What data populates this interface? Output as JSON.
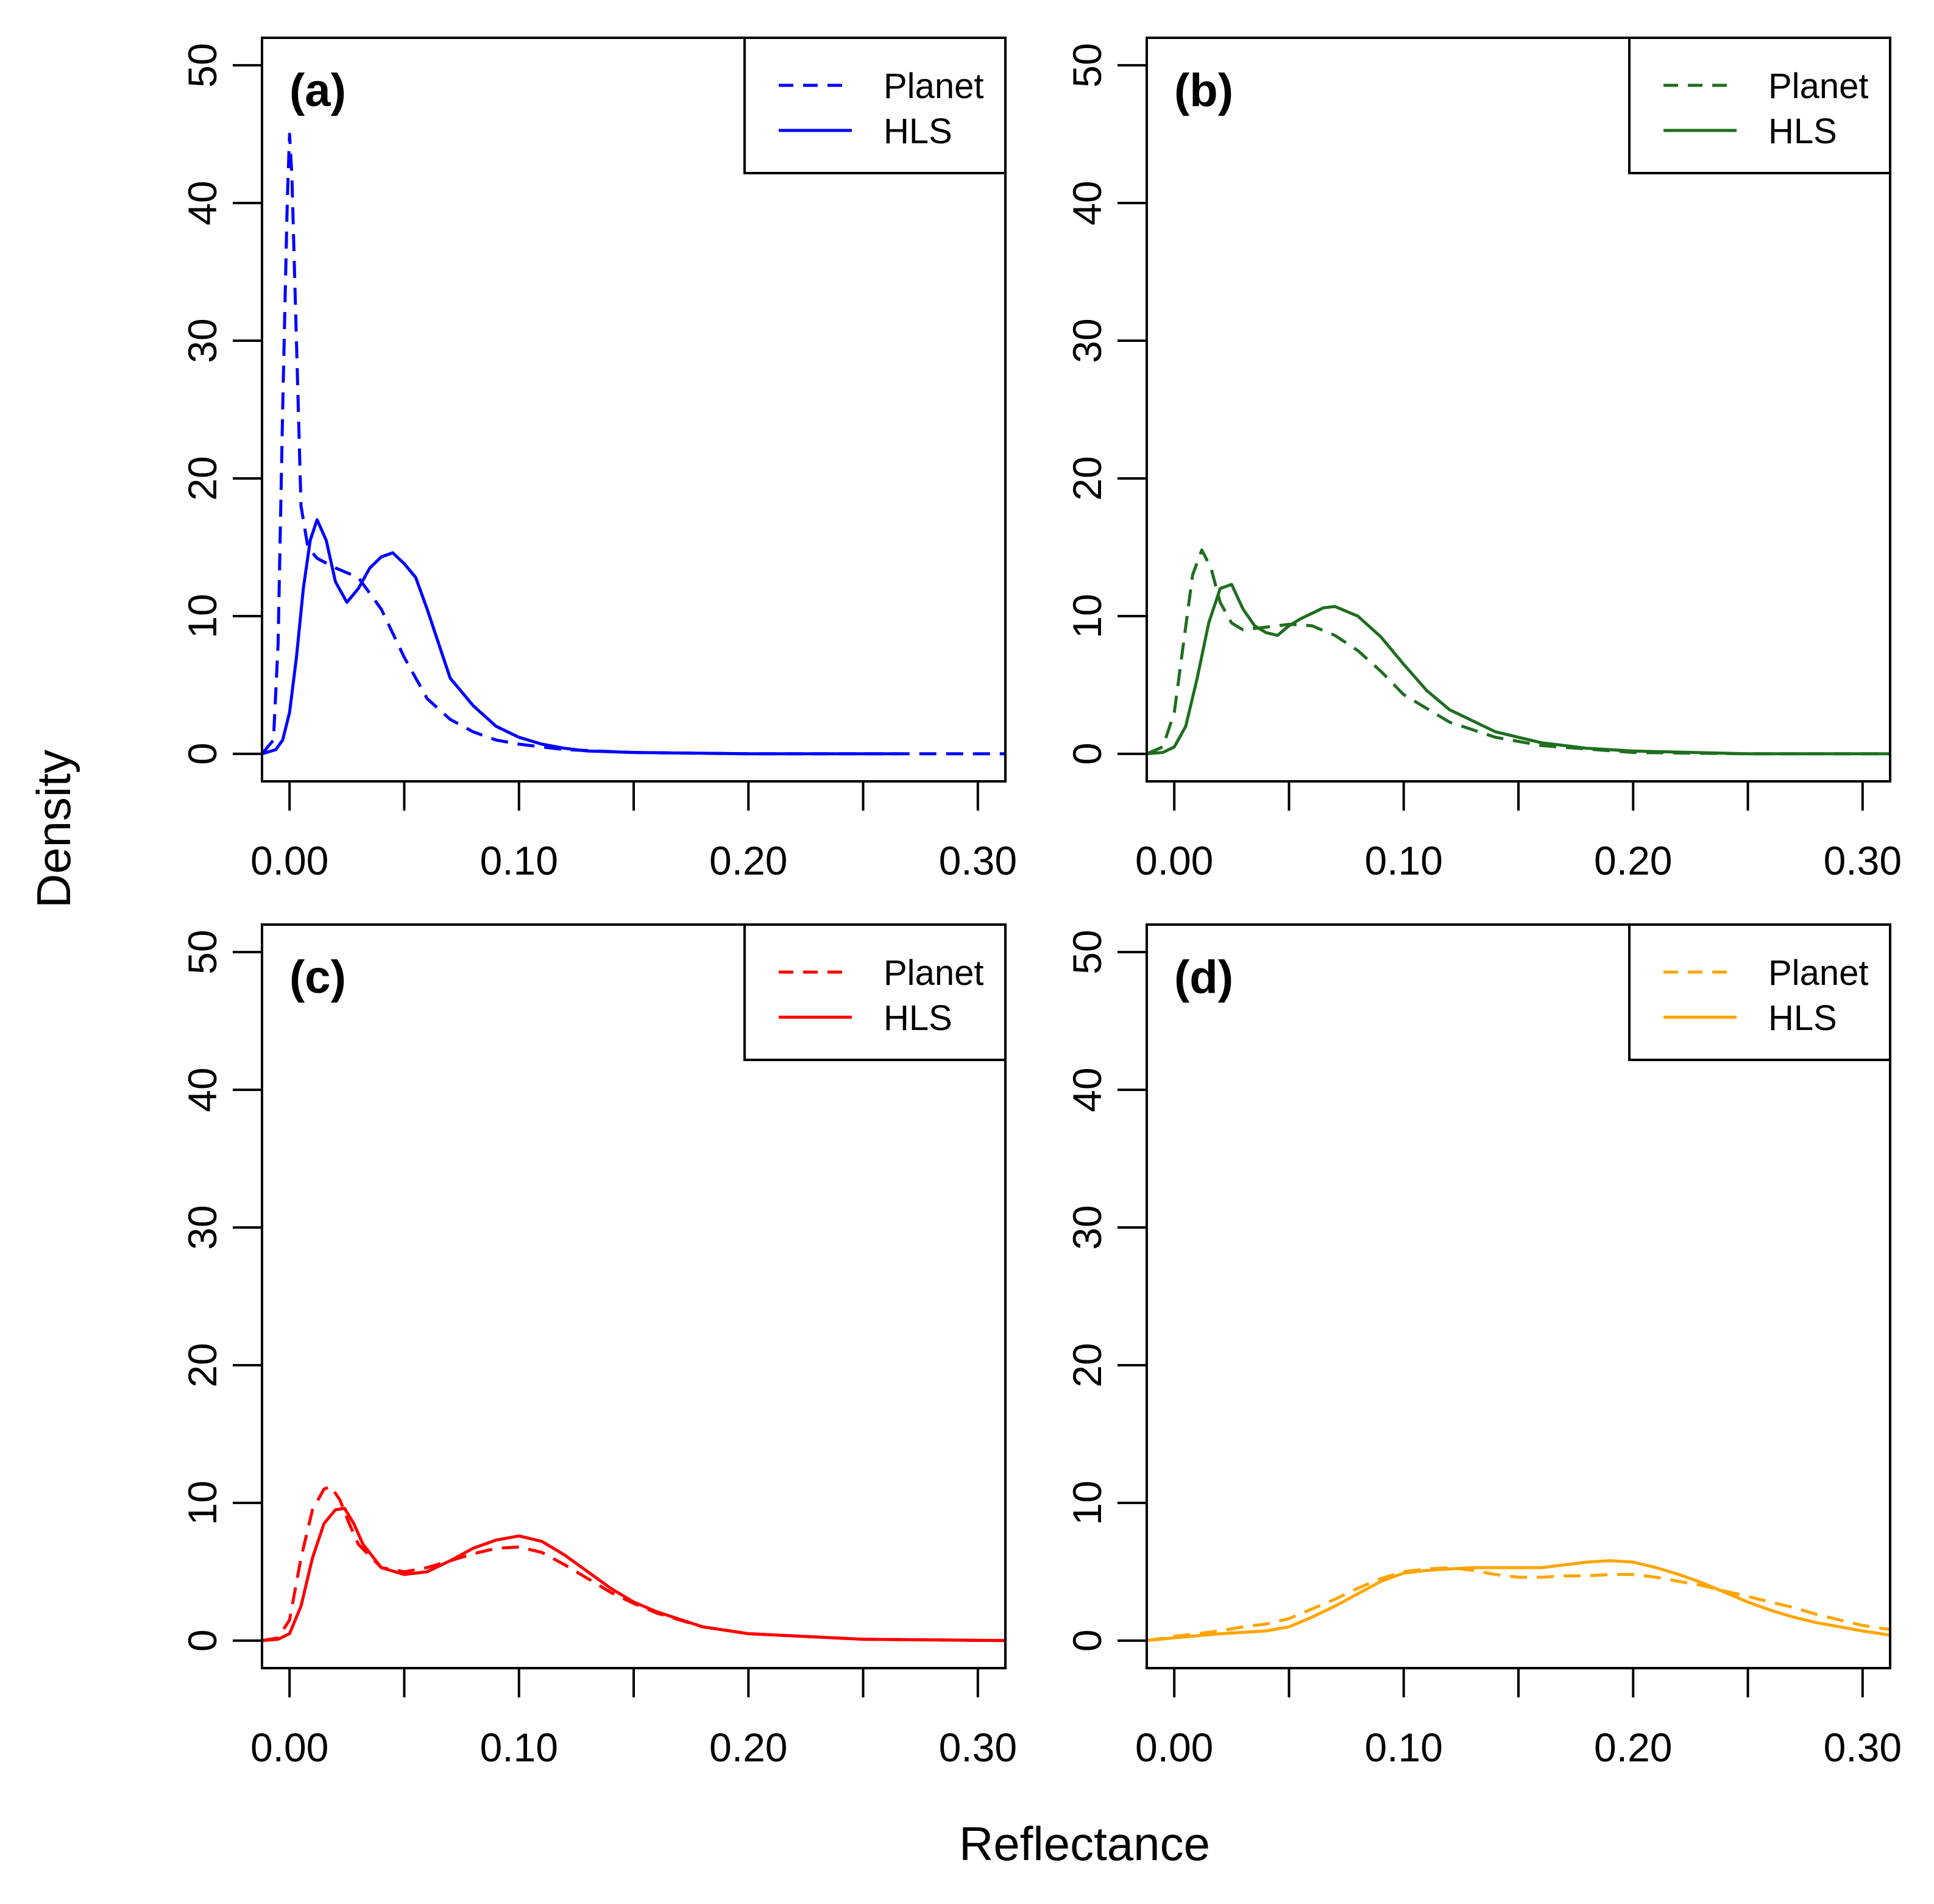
{
  "figure": {
    "xlabel": "Reflectance",
    "ylabel": "Density"
  },
  "chart_data": [
    {
      "type": "line",
      "panel_label": "(a)",
      "color": "#0000ff",
      "xlim": [
        -0.012,
        0.312
      ],
      "ylim": [
        -2,
        52
      ],
      "xticks": [
        0.0,
        0.05,
        0.1,
        0.15,
        0.2,
        0.25,
        0.3
      ],
      "xtick_labels": [
        "0.00",
        "",
        "0.10",
        "",
        "0.20",
        "",
        "0.30"
      ],
      "yticks": [
        0,
        10,
        20,
        30,
        40,
        50
      ],
      "ytick_labels": [
        "0",
        "10",
        "20",
        "30",
        "40",
        "50"
      ],
      "legend": {
        "position": "top-right",
        "entries": [
          "Planet",
          "HLS"
        ]
      },
      "series": [
        {
          "name": "Planet",
          "style": "dashed",
          "x": [
            -0.012,
            -0.007,
            -0.005,
            -0.003,
            -0.001,
            0.0,
            0.001,
            0.003,
            0.005,
            0.008,
            0.012,
            0.02,
            0.03,
            0.04,
            0.05,
            0.06,
            0.07,
            0.08,
            0.09,
            0.1,
            0.12,
            0.15,
            0.2,
            0.25,
            0.312
          ],
          "y": [
            0,
            1,
            8,
            25,
            40,
            45,
            42,
            30,
            18,
            15,
            14.2,
            13.5,
            12.8,
            10.5,
            7,
            4,
            2.5,
            1.6,
            1.0,
            0.7,
            0.3,
            0.1,
            0,
            0,
            0
          ]
        },
        {
          "name": "HLS",
          "style": "solid",
          "x": [
            -0.012,
            -0.006,
            -0.003,
            0.0,
            0.003,
            0.006,
            0.009,
            0.012,
            0.016,
            0.02,
            0.025,
            0.03,
            0.035,
            0.04,
            0.045,
            0.05,
            0.055,
            0.06,
            0.065,
            0.07,
            0.08,
            0.09,
            0.1,
            0.11,
            0.12,
            0.13,
            0.15,
            0.2,
            0.265
          ],
          "y": [
            0,
            0.3,
            1,
            3,
            7,
            12,
            15.5,
            17,
            15.5,
            12.5,
            11,
            12,
            13.5,
            14.3,
            14.6,
            13.8,
            12.8,
            10.5,
            8,
            5.5,
            3.5,
            2.0,
            1.2,
            0.7,
            0.4,
            0.2,
            0.1,
            0,
            0
          ]
        }
      ]
    },
    {
      "type": "line",
      "panel_label": "(b)",
      "color": "#1e6e1e",
      "xlim": [
        -0.012,
        0.312
      ],
      "ylim": [
        -2,
        52
      ],
      "xticks": [
        0.0,
        0.05,
        0.1,
        0.15,
        0.2,
        0.25,
        0.3
      ],
      "xtick_labels": [
        "0.00",
        "",
        "0.10",
        "",
        "0.20",
        "",
        "0.30"
      ],
      "yticks": [
        0,
        10,
        20,
        30,
        40,
        50
      ],
      "ytick_labels": [
        "0",
        "10",
        "20",
        "30",
        "40",
        "50"
      ],
      "legend": {
        "position": "top-right",
        "entries": [
          "Planet",
          "HLS"
        ]
      },
      "series": [
        {
          "name": "Planet",
          "style": "dashed",
          "x": [
            -0.012,
            -0.005,
            0.0,
            0.004,
            0.008,
            0.012,
            0.016,
            0.02,
            0.025,
            0.03,
            0.04,
            0.05,
            0.06,
            0.07,
            0.08,
            0.09,
            0.1,
            0.12,
            0.14,
            0.16,
            0.2,
            0.25,
            0.312
          ],
          "y": [
            0,
            0.5,
            3,
            8,
            13,
            14.8,
            13.5,
            11,
            9.5,
            9,
            9.2,
            9.4,
            9.3,
            8.6,
            7.5,
            6,
            4.3,
            2.3,
            1.2,
            0.6,
            0.1,
            0,
            0
          ]
        },
        {
          "name": "HLS",
          "style": "solid",
          "x": [
            -0.012,
            -0.005,
            0.0,
            0.005,
            0.01,
            0.015,
            0.02,
            0.025,
            0.03,
            0.035,
            0.04,
            0.045,
            0.05,
            0.055,
            0.06,
            0.065,
            0.07,
            0.08,
            0.09,
            0.1,
            0.11,
            0.12,
            0.14,
            0.16,
            0.18,
            0.2,
            0.25,
            0.312
          ],
          "y": [
            0,
            0.1,
            0.5,
            2,
            5.5,
            9.5,
            12,
            12.3,
            10.5,
            9.3,
            8.8,
            8.6,
            9.3,
            9.8,
            10.2,
            10.6,
            10.7,
            10,
            8.5,
            6.5,
            4.6,
            3.2,
            1.6,
            0.8,
            0.4,
            0.2,
            0,
            0
          ]
        }
      ]
    },
    {
      "type": "line",
      "panel_label": "(c)",
      "color": "#ff0000",
      "xlim": [
        -0.012,
        0.312
      ],
      "ylim": [
        -2,
        52
      ],
      "xticks": [
        0.0,
        0.05,
        0.1,
        0.15,
        0.2,
        0.25,
        0.3
      ],
      "xtick_labels": [
        "0.00",
        "",
        "0.10",
        "",
        "0.20",
        "",
        "0.30"
      ],
      "yticks": [
        0,
        10,
        20,
        30,
        40,
        50
      ],
      "ytick_labels": [
        "0",
        "10",
        "20",
        "30",
        "40",
        "50"
      ],
      "legend": {
        "position": "top-right",
        "entries": [
          "Planet",
          "HLS"
        ]
      },
      "series": [
        {
          "name": "Planet",
          "style": "dashed",
          "x": [
            -0.012,
            -0.005,
            0.0,
            0.005,
            0.01,
            0.015,
            0.018,
            0.022,
            0.026,
            0.03,
            0.04,
            0.05,
            0.06,
            0.07,
            0.08,
            0.09,
            0.1,
            0.11,
            0.12,
            0.13,
            0.14,
            0.15,
            0.16,
            0.18,
            0.2,
            0.25,
            0.312
          ],
          "y": [
            0,
            0.2,
            1.5,
            6,
            9.5,
            11,
            11.2,
            10.2,
            8.5,
            7,
            5.3,
            5,
            5.3,
            5.8,
            6.3,
            6.7,
            6.8,
            6.4,
            5.5,
            4.5,
            3.5,
            2.7,
            2.0,
            1.0,
            0.5,
            0.1,
            0
          ]
        },
        {
          "name": "HLS",
          "style": "solid",
          "x": [
            -0.012,
            -0.005,
            0.0,
            0.005,
            0.01,
            0.015,
            0.02,
            0.024,
            0.028,
            0.032,
            0.04,
            0.05,
            0.06,
            0.07,
            0.08,
            0.09,
            0.1,
            0.11,
            0.12,
            0.13,
            0.14,
            0.15,
            0.16,
            0.18,
            0.2,
            0.25,
            0.312
          ],
          "y": [
            0,
            0.1,
            0.5,
            2.5,
            6,
            8.5,
            9.5,
            9.6,
            8.5,
            7,
            5.3,
            4.8,
            5,
            5.8,
            6.7,
            7.3,
            7.6,
            7.2,
            6.2,
            5.0,
            3.8,
            2.8,
            2.1,
            1.0,
            0.5,
            0.1,
            0
          ]
        }
      ]
    },
    {
      "type": "line",
      "panel_label": "(d)",
      "color": "#ffa500",
      "xlim": [
        -0.012,
        0.312
      ],
      "ylim": [
        -2,
        52
      ],
      "xticks": [
        0.0,
        0.05,
        0.1,
        0.15,
        0.2,
        0.25,
        0.3
      ],
      "xtick_labels": [
        "0.00",
        "",
        "0.10",
        "",
        "0.20",
        "",
        "0.30"
      ],
      "yticks": [
        0,
        10,
        20,
        30,
        40,
        50
      ],
      "ytick_labels": [
        "0",
        "10",
        "20",
        "30",
        "40",
        "50"
      ],
      "legend": {
        "position": "top-right",
        "entries": [
          "Planet",
          "HLS"
        ]
      },
      "series": [
        {
          "name": "Planet",
          "style": "dashed",
          "x": [
            -0.012,
            0.0,
            0.02,
            0.03,
            0.04,
            0.05,
            0.06,
            0.07,
            0.08,
            0.09,
            0.1,
            0.11,
            0.12,
            0.13,
            0.14,
            0.15,
            0.16,
            0.17,
            0.18,
            0.19,
            0.2,
            0.21,
            0.22,
            0.23,
            0.24,
            0.25,
            0.26,
            0.27,
            0.28,
            0.29,
            0.3,
            0.312
          ],
          "y": [
            0,
            0.3,
            0.7,
            1.0,
            1.2,
            1.6,
            2.3,
            3.0,
            3.8,
            4.5,
            5.0,
            5.2,
            5.3,
            5.1,
            4.8,
            4.6,
            4.6,
            4.7,
            4.7,
            4.8,
            4.8,
            4.6,
            4.3,
            4.0,
            3.6,
            3.2,
            2.8,
            2.4,
            1.9,
            1.5,
            1.1,
            0.8
          ]
        },
        {
          "name": "HLS",
          "style": "solid",
          "x": [
            -0.012,
            0.0,
            0.02,
            0.03,
            0.04,
            0.05,
            0.06,
            0.07,
            0.08,
            0.09,
            0.1,
            0.11,
            0.12,
            0.13,
            0.14,
            0.15,
            0.16,
            0.17,
            0.18,
            0.19,
            0.2,
            0.21,
            0.22,
            0.23,
            0.24,
            0.25,
            0.26,
            0.27,
            0.28,
            0.29,
            0.3,
            0.312
          ],
          "y": [
            0,
            0.2,
            0.5,
            0.6,
            0.7,
            1.0,
            1.7,
            2.5,
            3.4,
            4.3,
            4.9,
            5.1,
            5.2,
            5.3,
            5.3,
            5.3,
            5.3,
            5.5,
            5.7,
            5.8,
            5.7,
            5.3,
            4.8,
            4.2,
            3.5,
            2.8,
            2.2,
            1.7,
            1.3,
            1.0,
            0.7,
            0.4
          ]
        }
      ]
    }
  ]
}
